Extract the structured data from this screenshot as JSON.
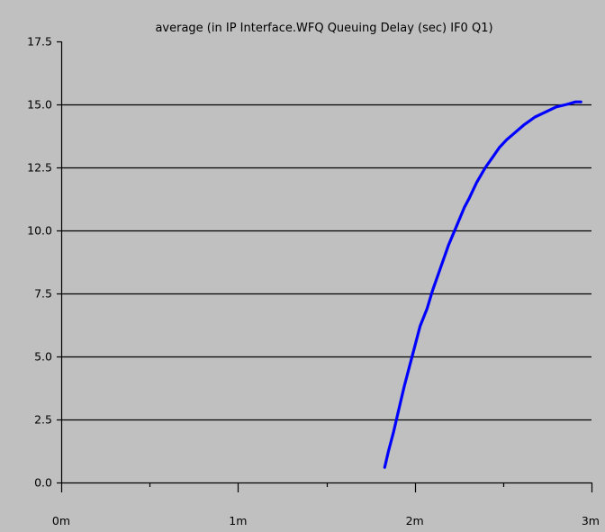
{
  "chart_data": {
    "type": "line",
    "title": "average (in IP Interface.WFQ Queuing Delay (sec) IF0 Q1)",
    "xlabel": "",
    "ylabel": "",
    "x_unit": "minutes",
    "xlim": [
      0,
      3
    ],
    "ylim": [
      0,
      17.5
    ],
    "x_ticks": [
      0,
      1,
      2,
      3
    ],
    "x_tick_labels": [
      "0m",
      "1m",
      "2m",
      "3m"
    ],
    "x_minor_ticks": [
      0.5,
      1.5,
      2.5
    ],
    "y_ticks": [
      0,
      2.5,
      5,
      7.5,
      10,
      12.5,
      15,
      17.5
    ],
    "y_tick_labels": [
      "0.0",
      "2.5",
      "5.0",
      "7.5",
      "10.0",
      "12.5",
      "15.0",
      "17.5"
    ],
    "grid": "horizontal",
    "legend": "none",
    "series": [
      {
        "x": [
          1.83,
          1.85,
          1.88,
          1.91,
          1.94,
          1.97,
          2.0,
          2.03,
          2.07,
          2.1,
          2.13,
          2.16,
          2.19,
          2.22,
          2.25,
          2.28,
          2.31,
          2.35,
          2.4,
          2.44,
          2.48,
          2.52,
          2.57,
          2.62,
          2.68,
          2.74,
          2.8,
          2.86,
          2.91,
          2.94
        ],
        "values": [
          0.6,
          1.2,
          2.0,
          2.9,
          3.8,
          4.6,
          5.4,
          6.2,
          6.9,
          7.6,
          8.2,
          8.8,
          9.4,
          9.9,
          10.4,
          10.9,
          11.3,
          11.9,
          12.5,
          12.9,
          13.3,
          13.6,
          13.9,
          14.2,
          14.5,
          14.7,
          14.9,
          15.0,
          15.1,
          15.1
        ]
      }
    ],
    "colors": {
      "background": "#c0c0c0",
      "axis": "#000000",
      "grid": "#000000",
      "line": "#0000ff"
    }
  }
}
